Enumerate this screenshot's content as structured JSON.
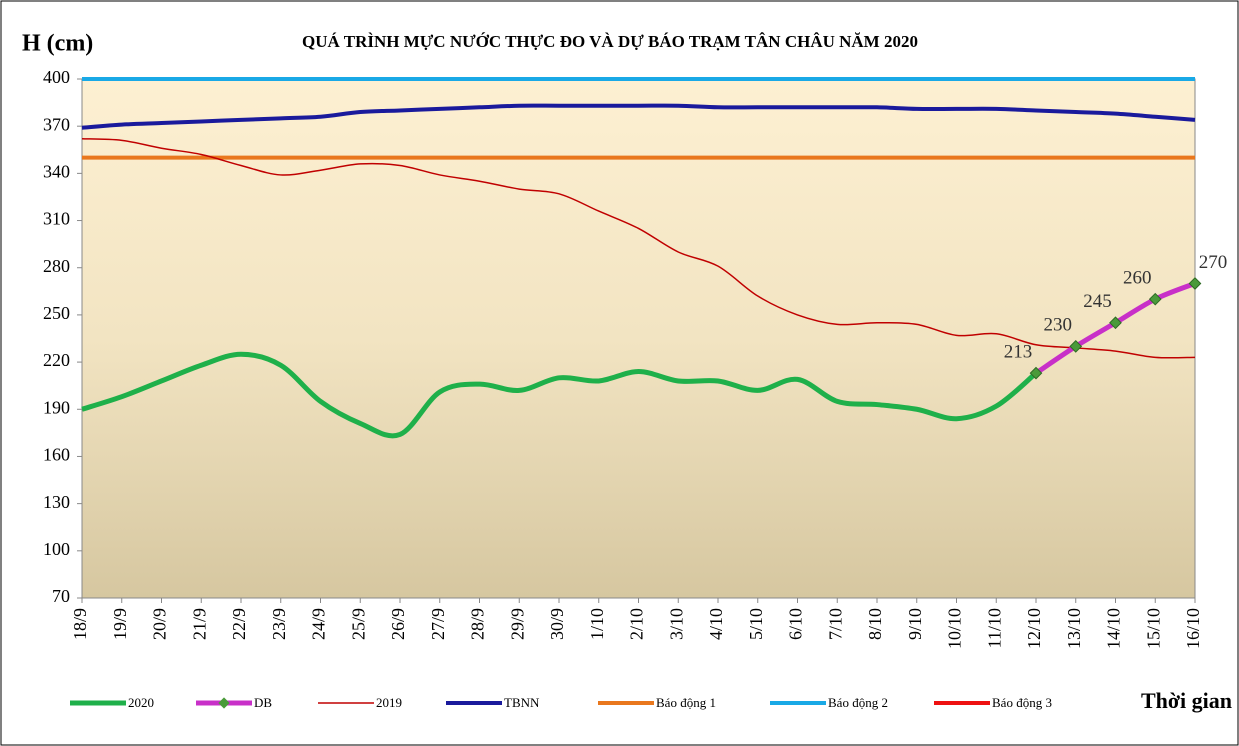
{
  "chart_data": {
    "type": "line",
    "title": "QUÁ TRÌNH MỰC NƯỚC THỰC ĐO VÀ DỰ BÁO TRẠM TÂN CHÂU NĂM 2020",
    "y_label": "H (cm)",
    "x_label": "Thời gian",
    "categories": [
      "18/9",
      "19/9",
      "20/9",
      "21/9",
      "22/9",
      "23/9",
      "24/9",
      "25/9",
      "26/9",
      "27/9",
      "28/9",
      "29/9",
      "30/9",
      "1/10",
      "2/10",
      "3/10",
      "4/10",
      "5/10",
      "6/10",
      "7/10",
      "8/10",
      "9/10",
      "10/10",
      "11/10",
      "12/10",
      "13/10",
      "14/10",
      "15/10",
      "16/10"
    ],
    "ylim": [
      70,
      400
    ],
    "yticks": [
      70,
      100,
      130,
      160,
      190,
      220,
      250,
      280,
      310,
      340,
      370,
      400
    ],
    "series": [
      {
        "name": "2020",
        "color": "#1fb04a",
        "width": 5,
        "values": [
          190,
          198,
          208,
          218,
          225,
          218,
          195,
          181,
          174,
          201,
          206,
          202,
          210,
          208,
          214,
          208,
          208,
          202,
          209,
          195,
          193,
          190,
          184,
          192,
          213,
          null,
          null,
          null,
          null
        ]
      },
      {
        "name": "DB",
        "color": "#c830c8",
        "width": 5,
        "markers": true,
        "data_labels": true,
        "values": [
          null,
          null,
          null,
          null,
          null,
          null,
          null,
          null,
          null,
          null,
          null,
          null,
          null,
          null,
          null,
          null,
          null,
          null,
          null,
          null,
          null,
          null,
          null,
          null,
          213,
          230,
          245,
          260,
          270
        ]
      },
      {
        "name": "2019",
        "color": "#c00000",
        "width": 1.5,
        "values": [
          362,
          361,
          356,
          352,
          345,
          339,
          342,
          346,
          345,
          339,
          335,
          330,
          327,
          316,
          305,
          290,
          281,
          262,
          250,
          244,
          245,
          244,
          237,
          238,
          231,
          229,
          227,
          223,
          223
        ]
      },
      {
        "name": "TBNN",
        "color": "#1a1a9c",
        "width": 4,
        "values": [
          369,
          371,
          372,
          373,
          374,
          375,
          376,
          379,
          380,
          381,
          382,
          383,
          383,
          383,
          383,
          383,
          382,
          382,
          382,
          382,
          382,
          381,
          381,
          381,
          380,
          379,
          378,
          376,
          374
        ]
      },
      {
        "name": "Báo động 1",
        "color": "#e9771d",
        "width": 4,
        "values": [
          350,
          350,
          350,
          350,
          350,
          350,
          350,
          350,
          350,
          350,
          350,
          350,
          350,
          350,
          350,
          350,
          350,
          350,
          350,
          350,
          350,
          350,
          350,
          350,
          350,
          350,
          350,
          350,
          350
        ]
      },
      {
        "name": "Báo động 2",
        "color": "#19a9e6",
        "width": 4,
        "values": [
          400,
          400,
          400,
          400,
          400,
          400,
          400,
          400,
          400,
          400,
          400,
          400,
          400,
          400,
          400,
          400,
          400,
          400,
          400,
          400,
          400,
          400,
          400,
          400,
          400,
          400,
          400,
          400,
          400
        ]
      },
      {
        "name": "Báo động 3",
        "color": "#ee1111",
        "width": 4,
        "values": [
          null,
          null,
          null,
          null,
          null,
          null,
          null,
          null,
          null,
          null,
          null,
          null,
          null,
          null,
          null,
          null,
          null,
          null,
          null,
          null,
          null,
          null,
          null,
          null,
          null,
          null,
          null,
          null,
          null
        ]
      }
    ]
  }
}
